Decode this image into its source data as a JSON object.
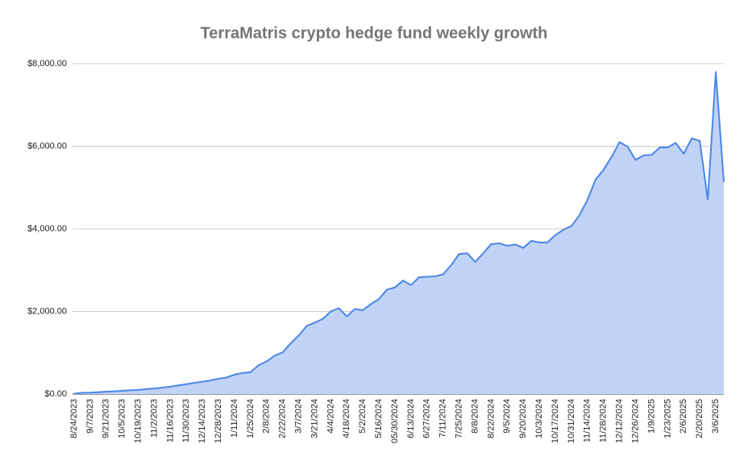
{
  "chart_data": {
    "type": "area",
    "title": "TerraMatris crypto hedge fund weekly growth",
    "categories": [
      "8/24/2023",
      null,
      "9/7/2023",
      null,
      "9/21/2023",
      null,
      "10/5/2023",
      null,
      "10/19/2023",
      null,
      "11/2/2023",
      null,
      "11/16/2023",
      null,
      "11/30/2023",
      null,
      "12/14/2023",
      null,
      "12/28/2023",
      null,
      "1/11/2024",
      null,
      "1/25/2024",
      null,
      "2/8/2024",
      null,
      "2/22/2024",
      null,
      "3/7/2024",
      null,
      "3/21/2024",
      null,
      "4/4/2024",
      null,
      "4/18/2024",
      null,
      "5/2/2024",
      null,
      "5/16/2024",
      null,
      "05/30/2024",
      null,
      "6/13/2024",
      null,
      "6/27/2024",
      null,
      "7/11/2024",
      null,
      "7/25/2024",
      null,
      "8/8/2024",
      null,
      "8/22/2024",
      null,
      "9/5/2024",
      null,
      "9/20/2024",
      null,
      "10/3/2024",
      null,
      "10/17/2024",
      null,
      "10/31/2024",
      null,
      "11/14/2024",
      null,
      "11/28/2024",
      null,
      "12/12/2024",
      null,
      "12/26/2024",
      null,
      "1/9/2025",
      null,
      "1/23/2025",
      null,
      "2/6/2025",
      null,
      "2/20/2025",
      null,
      "3/6/2025",
      null
    ],
    "values": [
      10,
      30,
      35,
      45,
      55,
      65,
      80,
      90,
      100,
      120,
      135,
      155,
      180,
      210,
      240,
      270,
      300,
      330,
      370,
      400,
      470,
      510,
      530,
      700,
      790,
      930,
      1010,
      1230,
      1420,
      1650,
      1730,
      1820,
      2000,
      2080,
      1880,
      2060,
      2030,
      2180,
      2300,
      2530,
      2580,
      2750,
      2640,
      2830,
      2840,
      2850,
      2900,
      3120,
      3390,
      3410,
      3200,
      3410,
      3630,
      3650,
      3590,
      3620,
      3540,
      3710,
      3670,
      3670,
      3850,
      3980,
      4070,
      4330,
      4700,
      5190,
      5430,
      5740,
      6100,
      5990,
      5670,
      5780,
      5790,
      5970,
      5970,
      6080,
      5820,
      6190,
      6130,
      4710,
      7800,
      5130
    ],
    "color": "#4a86e8",
    "fill": "#c0d2f5",
    "ylim": [
      0,
      8000
    ],
    "yticks": [
      {
        "value": 0,
        "label": "$0.00"
      },
      {
        "value": 2000,
        "label": "$2,000.00"
      },
      {
        "value": 4000,
        "label": "$4,000.00"
      },
      {
        "value": 6000,
        "label": "$6,000.00"
      },
      {
        "value": 8000,
        "label": "$8,000.00"
      }
    ],
    "grid": true
  }
}
